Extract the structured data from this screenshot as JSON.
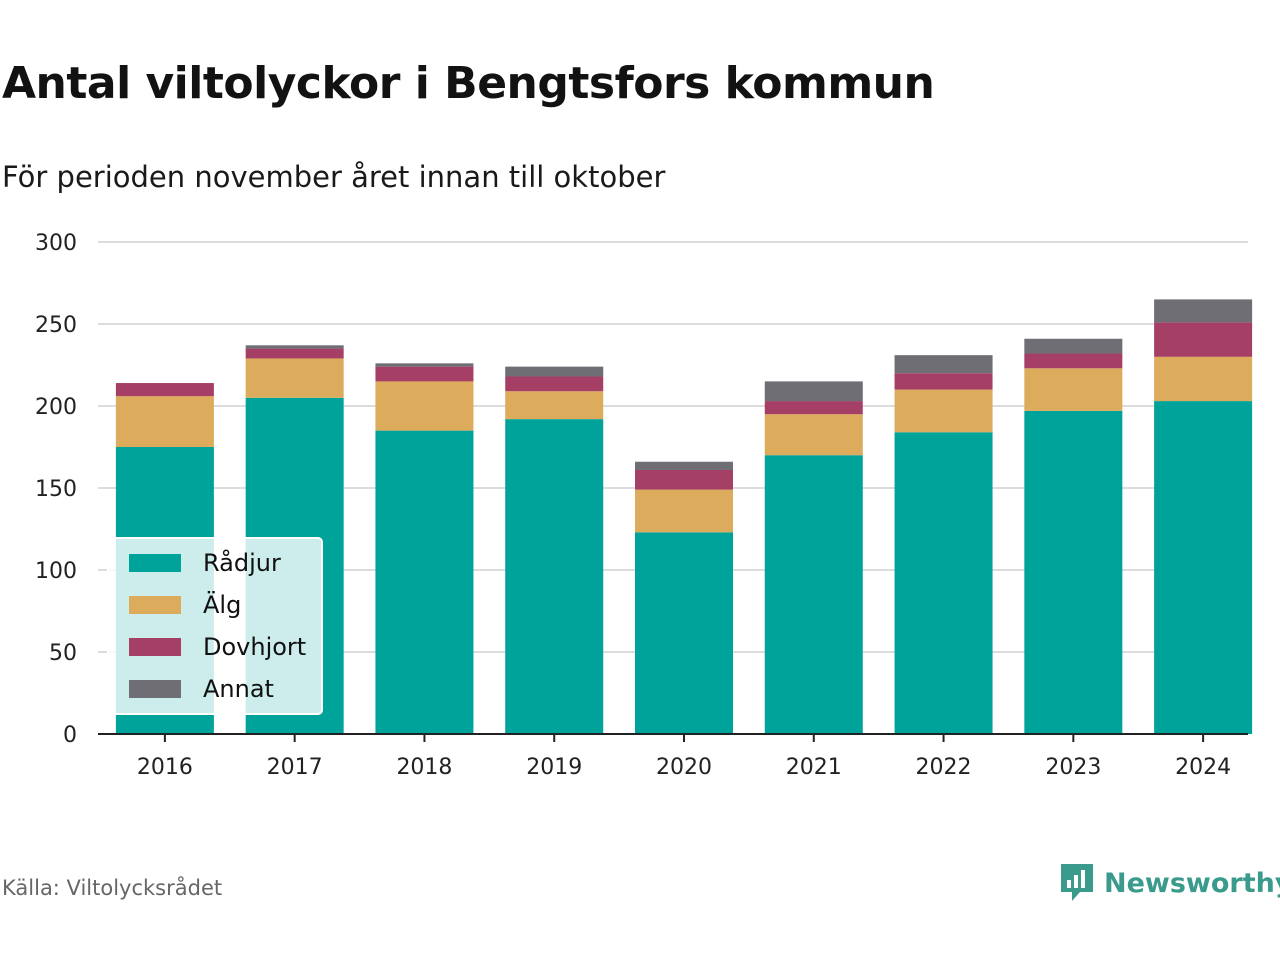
{
  "header": {
    "title": "Antal viltolyckor i Bengtsfors kommun",
    "subtitle": "För perioden november året innan till oktober"
  },
  "footer": {
    "source": "Källa: Viltolycksrådet",
    "brand": "Newsworthy",
    "brand_icon": "bar-chart-speech-bubble-icon"
  },
  "colors": {
    "Rådjur": "#00a39a",
    "Älg": "#ddab5c",
    "Dovhjort": "#a53f66",
    "Annat": "#6e6e74",
    "brand": "#3a9a8c"
  },
  "chart_data": {
    "type": "bar",
    "stacked": true,
    "title": "Antal viltolyckor i Bengtsfors kommun",
    "subtitle": "För perioden november året innan till oktober",
    "xlabel": "",
    "ylabel": "",
    "categories": [
      "2016",
      "2017",
      "2018",
      "2019",
      "2020",
      "2021",
      "2022",
      "2023",
      "2024"
    ],
    "ylim": [
      0,
      300
    ],
    "yticks": [
      0,
      50,
      100,
      150,
      200,
      250,
      300
    ],
    "grid": true,
    "legend_position": "bottom-left",
    "series": [
      {
        "name": "Rådjur",
        "values": [
          175,
          205,
          185,
          192,
          123,
          170,
          184,
          197,
          203
        ]
      },
      {
        "name": "Älg",
        "values": [
          31,
          24,
          30,
          17,
          26,
          25,
          26,
          26,
          27
        ]
      },
      {
        "name": "Dovhjort",
        "values": [
          8,
          6,
          9,
          9,
          12,
          8,
          10,
          9,
          21
        ]
      },
      {
        "name": "Annat",
        "values": [
          0,
          2,
          2,
          6,
          5,
          12,
          11,
          9,
          14
        ]
      }
    ]
  }
}
